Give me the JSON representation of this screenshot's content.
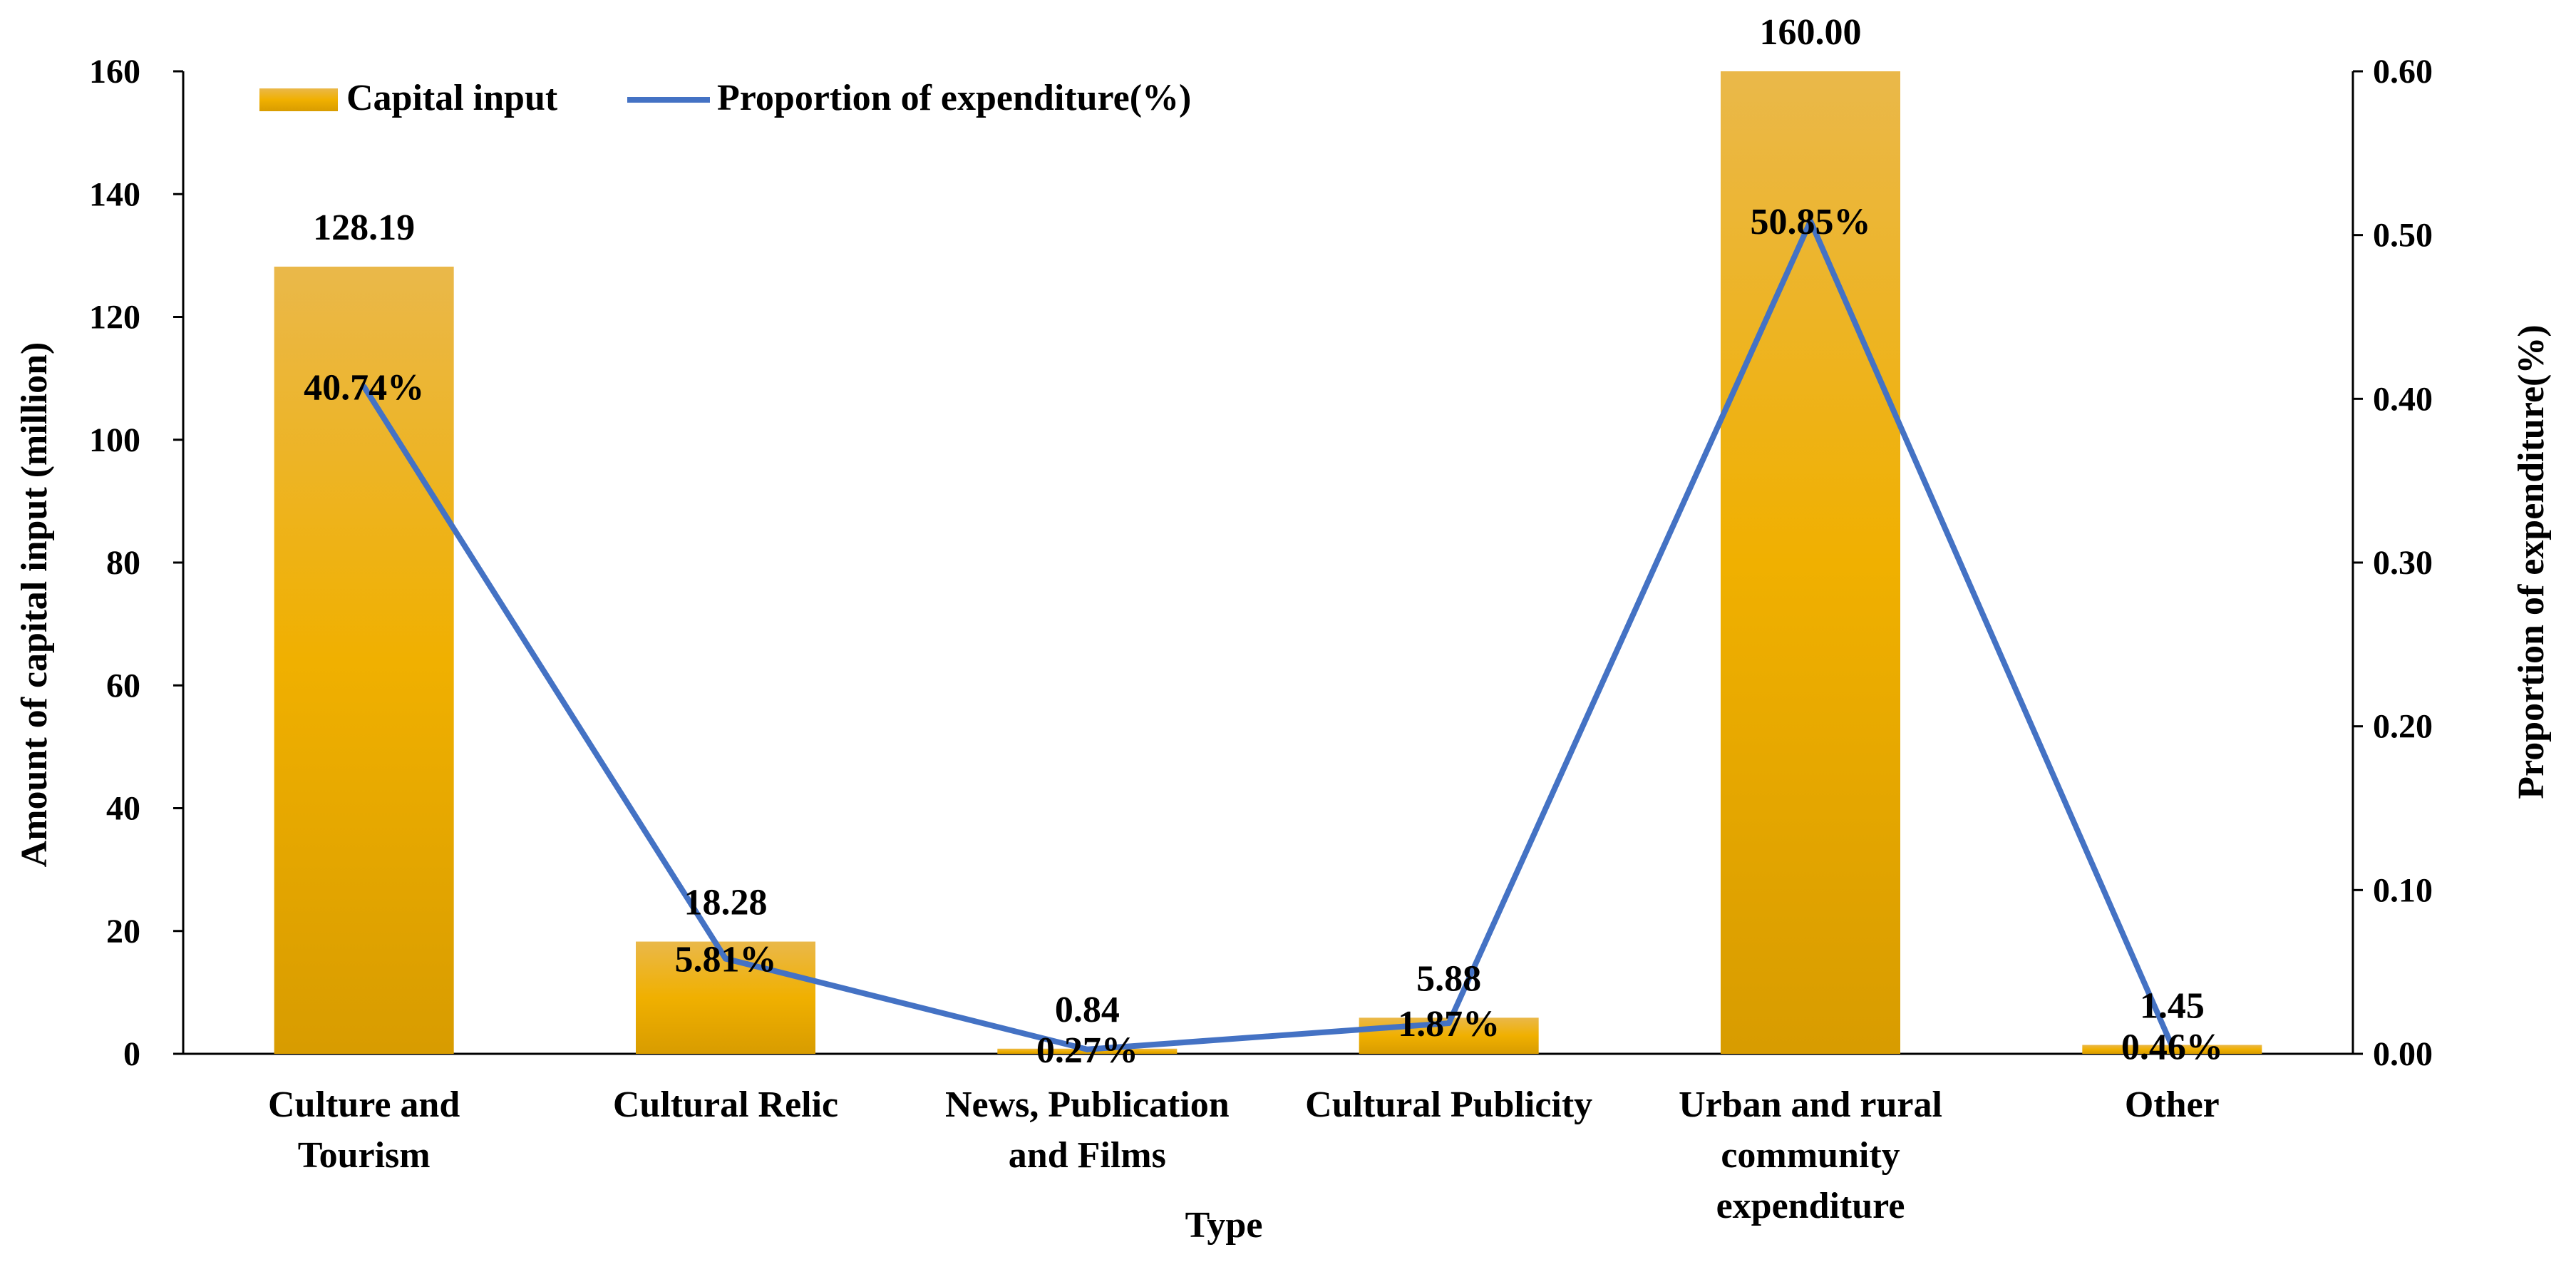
{
  "chart_data": {
    "type": "bar+line",
    "title": "",
    "xlabel": "Type",
    "ylabel": "Amount of capital input (million)",
    "y2label": "Proportion of expenditure(%)",
    "ylim": [
      0,
      160
    ],
    "y2lim": [
      0,
      0.6
    ],
    "yticks": [
      "0",
      "20",
      "40",
      "60",
      "80",
      "100",
      "120",
      "140",
      "160"
    ],
    "y2ticks": [
      "0.00",
      "0.10",
      "0.20",
      "0.30",
      "0.40",
      "0.50",
      "0.60"
    ],
    "categories": [
      [
        "Culture and",
        "Tourism"
      ],
      [
        "Cultural Relic"
      ],
      [
        "News, Publication",
        "and Films"
      ],
      [
        "Cultural Publicity"
      ],
      [
        "Urban and rural",
        "community",
        "expenditure"
      ],
      [
        "Other"
      ]
    ],
    "series": [
      {
        "name": "Capital input",
        "type": "bar",
        "axis": "left",
        "color": "#E8A800",
        "values": [
          128.19,
          18.28,
          0.84,
          5.88,
          160.0,
          1.45
        ],
        "labels": [
          "128.19",
          "18.28",
          "0.84",
          "5.88",
          "160.00",
          "1.45"
        ]
      },
      {
        "name": "Proportion of expenditure(%)",
        "type": "line",
        "axis": "right",
        "color": "#4472C4",
        "values": [
          0.4074,
          0.0581,
          0.0027,
          0.0187,
          0.5085,
          0.0046
        ],
        "labels": [
          "40.74%",
          "5.81%",
          "0.27%",
          "1.87%",
          "50.85%",
          "0.46%"
        ]
      }
    ],
    "legend": {
      "position": "top-left"
    }
  }
}
